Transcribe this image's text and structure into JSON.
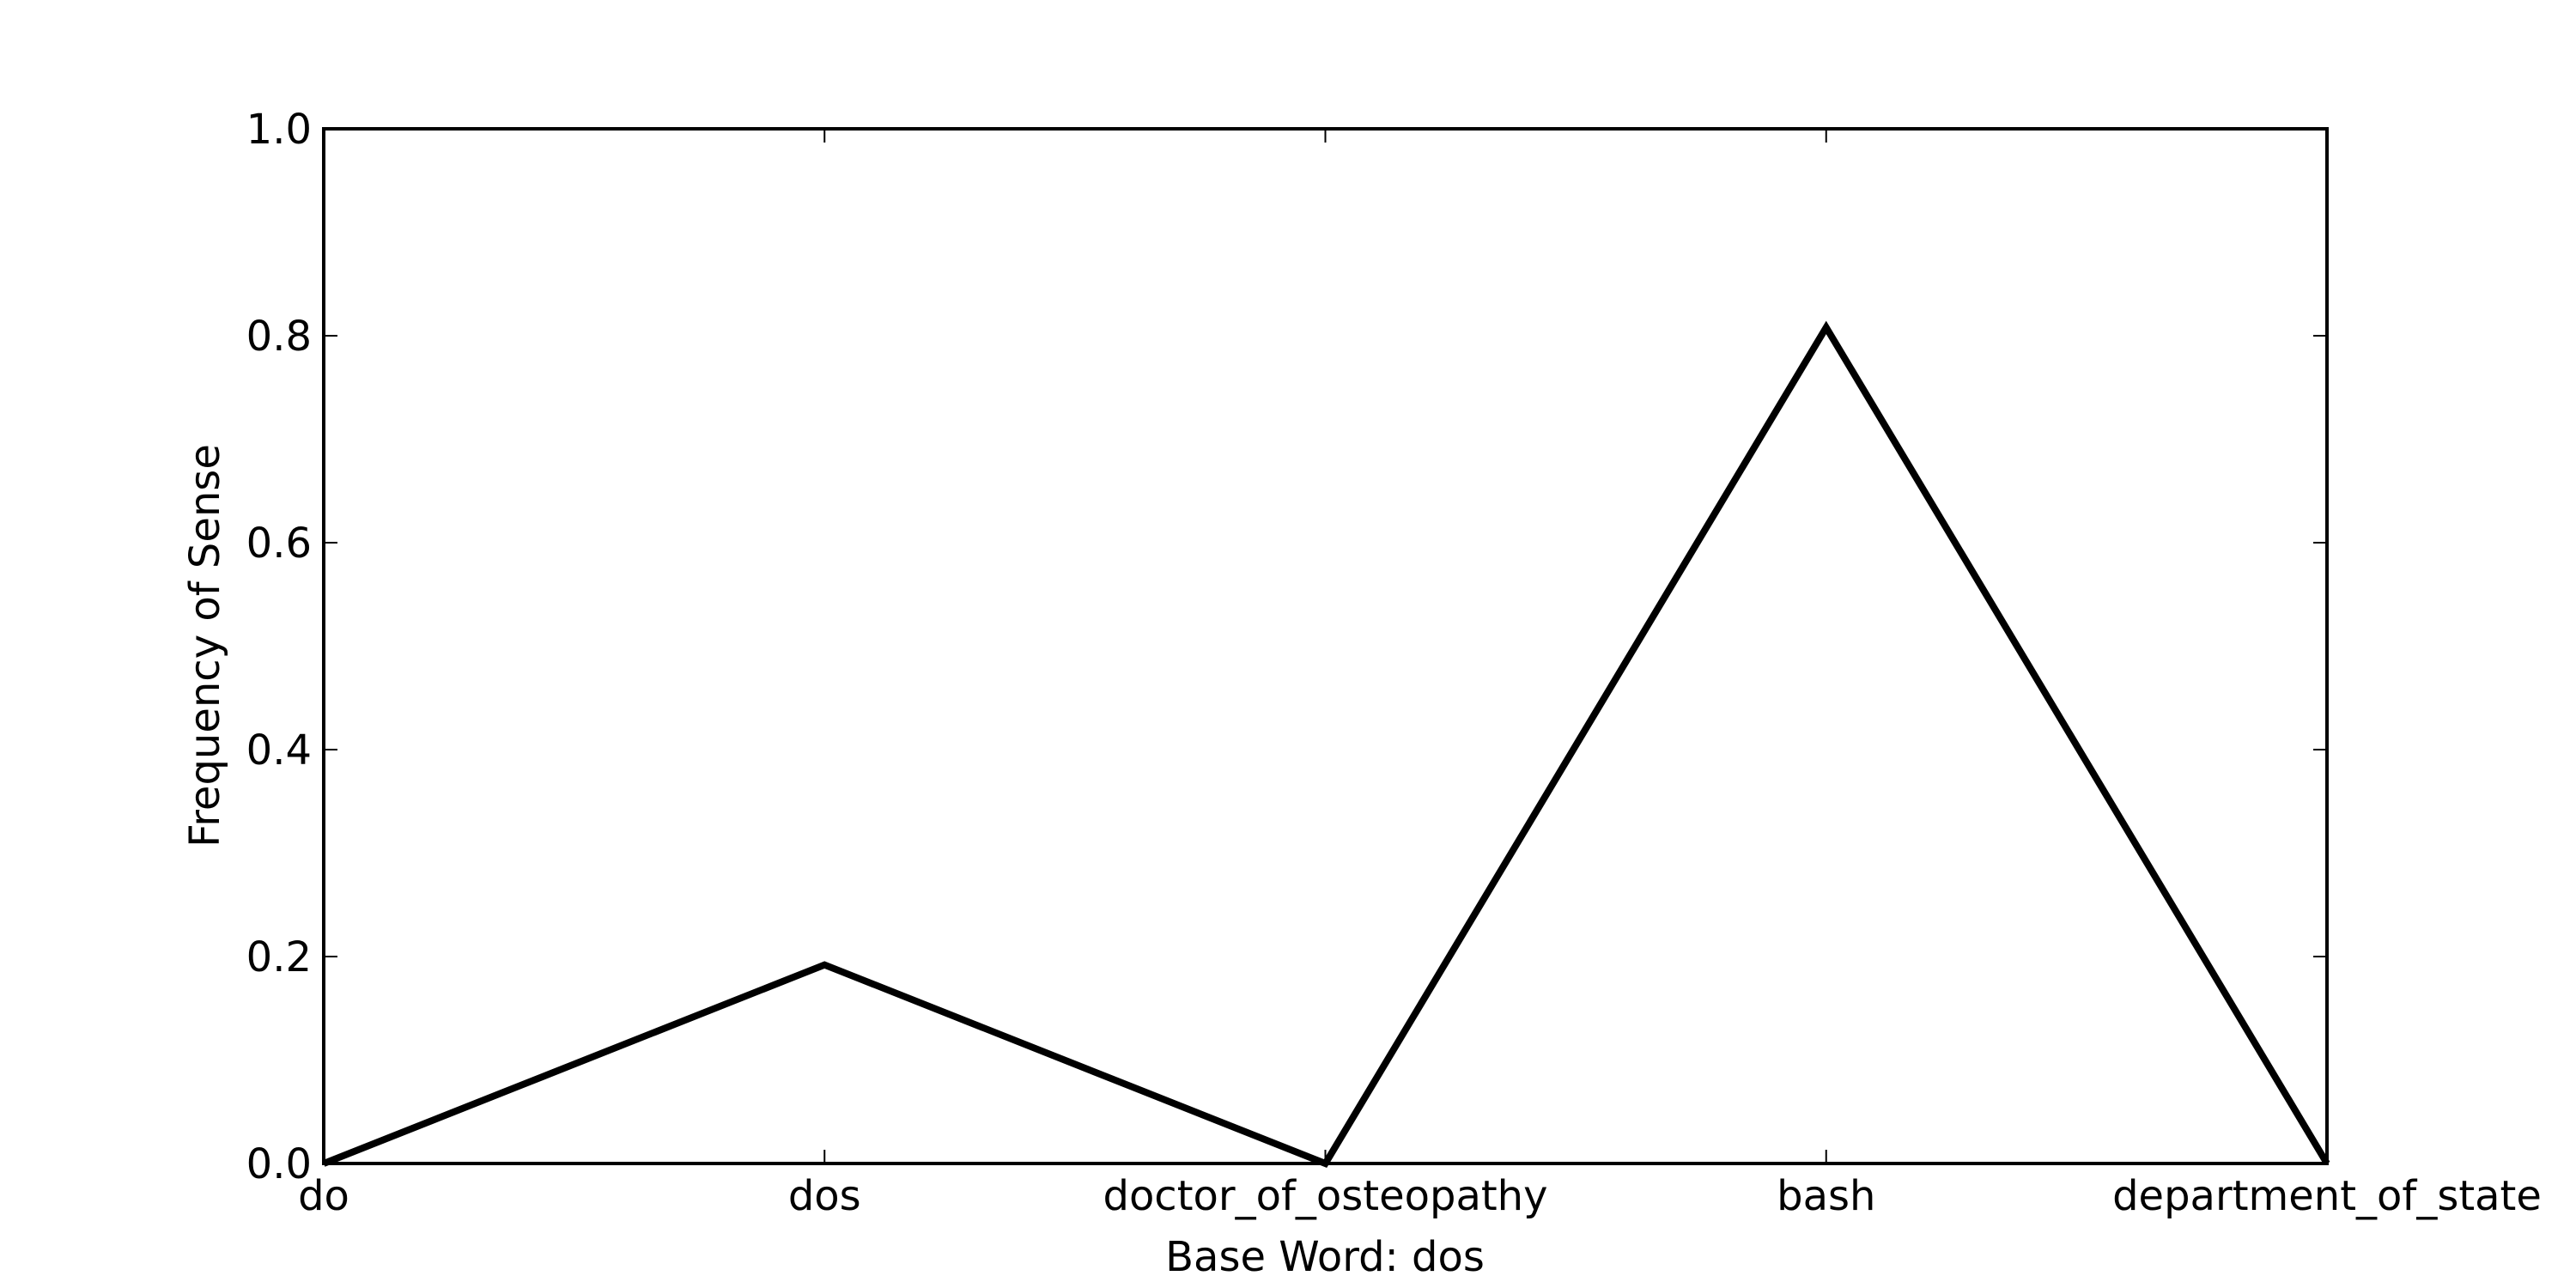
{
  "chart_data": {
    "type": "line",
    "title": "",
    "xlabel": "Base Word: dos",
    "ylabel": "Frequency of Sense",
    "categories": [
      "do",
      "dos",
      "doctor_of_osteopathy",
      "bash",
      "department_of_state"
    ],
    "series": [
      {
        "values": [
          0.0,
          0.192,
          0.0,
          0.808,
          0.0
        ]
      }
    ],
    "ylim": [
      0.0,
      1.0
    ],
    "yticks": [
      0.0,
      0.2,
      0.4,
      0.6,
      0.8,
      1.0
    ],
    "ytick_labels": [
      "0.0",
      "0.2",
      "0.4",
      "0.6",
      "0.8",
      "1.0"
    ],
    "grid": false,
    "line_color": "#000000"
  }
}
